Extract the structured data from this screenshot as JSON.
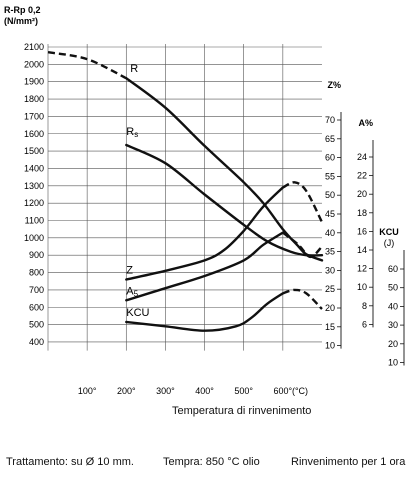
{
  "chart_data": {
    "type": "line",
    "y_title": "R-Rp 0,2",
    "y_unit": "(N/mm²)",
    "xlabel": "Temperatura di rinvenimento",
    "x_unit": "(°C)",
    "x_range": [
      0,
      700
    ],
    "x_ticks": [
      100,
      200,
      300,
      400,
      500,
      600
    ],
    "x_tick_labels": [
      "100°",
      "200°",
      "300°",
      "400°",
      "500°",
      "600°"
    ],
    "left_axis": {
      "range": [
        350,
        2120
      ],
      "ticks": [
        400,
        500,
        600,
        700,
        800,
        900,
        1000,
        1100,
        1200,
        1300,
        1400,
        1500,
        1600,
        1700,
        1800,
        1900,
        2000,
        2100
      ]
    },
    "right_axes": [
      {
        "label": "Z%",
        "ticks": [
          10,
          15,
          20,
          25,
          30,
          35,
          40,
          45,
          50,
          55,
          60,
          65,
          70
        ]
      },
      {
        "label": "A%",
        "ticks": [
          6,
          8,
          10,
          12,
          14,
          16,
          18,
          20,
          22,
          24
        ]
      },
      {
        "label": "KCU",
        "unit": "(J)",
        "ticks": [
          10,
          20,
          30,
          40,
          50,
          60
        ]
      }
    ],
    "grid": true,
    "series": [
      {
        "name": "R",
        "dash_below_x": 200,
        "x": [
          0,
          100,
          200,
          300,
          400,
          500,
          550,
          600,
          640,
          660,
          700
        ],
        "y": [
          2070,
          2030,
          1920,
          1750,
          1530,
          1320,
          1200,
          1050,
          950,
          905,
          870
        ]
      },
      {
        "name": "Rs",
        "x": [
          200,
          300,
          400,
          500,
          560,
          620,
          660,
          700
        ],
        "y": [
          1535,
          1430,
          1250,
          1075,
          980,
          920,
          900,
          900
        ]
      },
      {
        "name": "Z",
        "dash_above_x": 600,
        "x": [
          200,
          300,
          400,
          450,
          500,
          550,
          600,
          630,
          660,
          700
        ],
        "y": [
          760,
          810,
          870,
          930,
          1040,
          1180,
          1290,
          1320,
          1270,
          1090
        ]
      },
      {
        "name": "A5",
        "dash_above_x": 600,
        "x": [
          200,
          300,
          400,
          500,
          550,
          600,
          640,
          670,
          700
        ],
        "y": [
          640,
          710,
          780,
          870,
          960,
          1030,
          960,
          890,
          950
        ]
      },
      {
        "name": "KCU",
        "dash_above_x": 600,
        "x": [
          200,
          300,
          400,
          480,
          520,
          560,
          600,
          630,
          660,
          700
        ],
        "y": [
          515,
          490,
          465,
          490,
          540,
          620,
          680,
          700,
          680,
          590
        ]
      }
    ]
  },
  "footer": {
    "left": "Trattamento: su Ø 10 mm.",
    "mid": "Tempra: 850 °C olio",
    "right": "Rinvenimento per 1 ora"
  }
}
